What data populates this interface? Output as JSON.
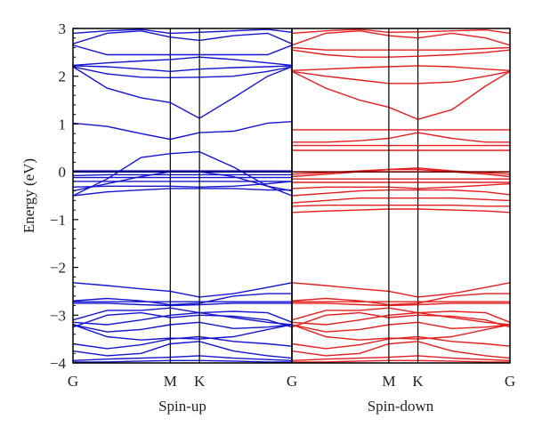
{
  "chart_data": {
    "type": "line",
    "ylabel": "Energy (eV)",
    "ylim": [
      -4,
      3
    ],
    "yticks": [
      3,
      2,
      1,
      0,
      -1,
      -2,
      -3,
      -4
    ],
    "ytick_labels": [
      "3",
      "2",
      "1",
      "0",
      "−1",
      "−2",
      "−3",
      "−4"
    ],
    "fermi_level": 0,
    "grid": false,
    "legend": "none",
    "x": [
      0,
      1,
      2,
      3,
      4
    ],
    "panels": [
      {
        "title": "Spin-up",
        "color": "#1414d2",
        "kpoint_labels": [
          "G",
          "M",
          "K",
          "G"
        ],
        "kpoint_positions": [
          0,
          2,
          2.6,
          4.5
        ],
        "x": [
          0,
          0.7,
          1.4,
          2.0,
          2.6,
          3.3,
          4.0,
          4.5
        ],
        "series": [
          {
            "values": [
              -3.98,
              -3.98,
              -3.96,
              -3.95,
              -3.95,
              -3.96,
              -3.98,
              -3.98
            ]
          },
          {
            "values": [
              -3.95,
              -3.92,
              -3.9,
              -3.88,
              -3.85,
              -3.9,
              -3.93,
              -3.95
            ]
          },
          {
            "values": [
              -3.75,
              -3.85,
              -3.8,
              -3.6,
              -3.55,
              -3.75,
              -3.85,
              -3.9
            ]
          },
          {
            "values": [
              -3.6,
              -3.7,
              -3.62,
              -3.5,
              -3.45,
              -3.55,
              -3.6,
              -3.65
            ]
          },
          {
            "values": [
              -3.2,
              -3.45,
              -3.52,
              -3.48,
              -3.5,
              -3.45,
              -3.3,
              -3.2
            ]
          },
          {
            "values": [
              -3.2,
              -3.35,
              -3.3,
              -3.2,
              -3.15,
              -3.28,
              -3.25,
              -3.2
            ]
          },
          {
            "values": [
              -3.15,
              -3.2,
              -3.1,
              -3.0,
              -2.95,
              -3.05,
              -3.15,
              -3.2
            ]
          },
          {
            "values": [
              -3.25,
              -3.0,
              -2.95,
              -3.05,
              -3.0,
              -3.02,
              -3.1,
              -3.25
            ]
          },
          {
            "values": [
              -3.1,
              -2.9,
              -2.9,
              -2.85,
              -2.95,
              -2.92,
              -2.95,
              -3.15
            ]
          },
          {
            "values": [
              -2.75,
              -2.75,
              -2.78,
              -2.8,
              -2.78,
              -2.75,
              -2.75,
              -2.75
            ]
          },
          {
            "values": [
              -2.72,
              -2.72,
              -2.72,
              -2.72,
              -2.72,
              -2.72,
              -2.72,
              -2.72
            ]
          },
          {
            "values": [
              -2.7,
              -2.65,
              -2.7,
              -2.78,
              -2.75,
              -2.6,
              -2.55,
              -2.55
            ]
          },
          {
            "values": [
              -2.32,
              -2.38,
              -2.45,
              -2.5,
              -2.62,
              -2.55,
              -2.42,
              -2.32
            ]
          },
          {
            "values": [
              -0.5,
              -0.42,
              -0.38,
              -0.35,
              -0.35,
              -0.35,
              -0.38,
              -0.38
            ]
          },
          {
            "values": [
              -0.32,
              -0.3,
              -0.3,
              -0.3,
              -0.32,
              -0.3,
              -0.25,
              -0.2
            ]
          },
          {
            "values": [
              -0.2,
              -0.2,
              -0.2,
              -0.2,
              -0.2,
              -0.2,
              -0.2,
              -0.2
            ]
          },
          {
            "values": [
              -0.12,
              -0.12,
              -0.12,
              -0.12,
              -0.12,
              -0.12,
              -0.12,
              -0.12
            ]
          },
          {
            "values": [
              -0.08,
              -0.06,
              -0.06,
              -0.06,
              -0.06,
              -0.06,
              -0.06,
              -0.06
            ]
          },
          {
            "values": [
              0.02,
              0.02,
              0.02,
              0.02,
              0.02,
              0.02,
              0.02,
              0.02
            ]
          },
          {
            "values": [
              -0.5,
              -0.15,
              0.3,
              0.38,
              0.42,
              0.1,
              -0.3,
              -0.5
            ]
          },
          {
            "values": [
              -0.4,
              -0.25,
              -0.1,
              0.0,
              0.0,
              -0.1,
              -0.3,
              -0.4
            ]
          },
          {
            "values": [
              1.02,
              0.95,
              0.8,
              0.68,
              0.82,
              0.85,
              1.02,
              1.05
            ]
          },
          {
            "values": [
              2.2,
              1.75,
              1.55,
              1.45,
              1.12,
              1.55,
              2.0,
              2.2
            ]
          },
          {
            "values": [
              2.2,
              2.05,
              1.98,
              1.97,
              1.98,
              2.0,
              2.1,
              2.2
            ]
          },
          {
            "values": [
              2.22,
              2.2,
              2.15,
              2.1,
              2.15,
              2.18,
              2.2,
              2.22
            ]
          },
          {
            "values": [
              2.23,
              2.28,
              2.32,
              2.35,
              2.4,
              2.35,
              2.28,
              2.23
            ]
          },
          {
            "values": [
              2.65,
              2.45,
              2.45,
              2.45,
              2.45,
              2.45,
              2.45,
              2.65
            ]
          },
          {
            "values": [
              2.68,
              2.9,
              2.95,
              2.82,
              2.75,
              2.85,
              2.9,
              2.68
            ]
          },
          {
            "values": [
              2.9,
              2.95,
              2.98,
              2.9,
              2.92,
              2.95,
              2.98,
              2.92
            ]
          }
        ]
      },
      {
        "title": "Spin-down",
        "color": "#e41e1e",
        "kpoint_labels": [
          "G",
          "M",
          "K",
          "G"
        ],
        "kpoint_positions": [
          0,
          2,
          2.6,
          4.5
        ],
        "x": [
          0,
          0.7,
          1.4,
          2.0,
          2.6,
          3.3,
          4.0,
          4.5
        ],
        "series": [
          {
            "values": [
              -3.98,
              -3.98,
              -3.96,
              -3.95,
              -3.95,
              -3.96,
              -3.98,
              -3.98
            ]
          },
          {
            "values": [
              -3.95,
              -3.92,
              -3.9,
              -3.88,
              -3.85,
              -3.9,
              -3.93,
              -3.95
            ]
          },
          {
            "values": [
              -3.75,
              -3.85,
              -3.8,
              -3.6,
              -3.55,
              -3.75,
              -3.85,
              -3.9
            ]
          },
          {
            "values": [
              -3.6,
              -3.7,
              -3.62,
              -3.5,
              -3.45,
              -3.55,
              -3.6,
              -3.65
            ]
          },
          {
            "values": [
              -3.2,
              -3.45,
              -3.52,
              -3.48,
              -3.5,
              -3.45,
              -3.3,
              -3.2
            ]
          },
          {
            "values": [
              -3.2,
              -3.35,
              -3.3,
              -3.2,
              -3.15,
              -3.28,
              -3.25,
              -3.2
            ]
          },
          {
            "values": [
              -3.15,
              -3.2,
              -3.1,
              -3.0,
              -2.95,
              -3.05,
              -3.15,
              -3.2
            ]
          },
          {
            "values": [
              -3.25,
              -3.0,
              -2.95,
              -3.05,
              -3.0,
              -3.02,
              -3.1,
              -3.25
            ]
          },
          {
            "values": [
              -3.1,
              -2.9,
              -2.9,
              -2.85,
              -2.95,
              -2.92,
              -2.95,
              -3.15
            ]
          },
          {
            "values": [
              -2.75,
              -2.75,
              -2.78,
              -2.8,
              -2.78,
              -2.75,
              -2.75,
              -2.75
            ]
          },
          {
            "values": [
              -2.72,
              -2.72,
              -2.72,
              -2.72,
              -2.72,
              -2.72,
              -2.72,
              -2.72
            ]
          },
          {
            "values": [
              -2.7,
              -2.65,
              -2.7,
              -2.78,
              -2.75,
              -2.6,
              -2.55,
              -2.55
            ]
          },
          {
            "values": [
              -2.32,
              -2.38,
              -2.45,
              -2.5,
              -2.62,
              -2.55,
              -2.42,
              -2.32
            ]
          },
          {
            "values": [
              -0.85,
              -0.82,
              -0.8,
              -0.78,
              -0.78,
              -0.8,
              -0.82,
              -0.85
            ]
          },
          {
            "values": [
              -0.72,
              -0.7,
              -0.7,
              -0.7,
              -0.7,
              -0.7,
              -0.72,
              -0.72
            ]
          },
          {
            "values": [
              -0.65,
              -0.6,
              -0.55,
              -0.55,
              -0.55,
              -0.55,
              -0.58,
              -0.6
            ]
          },
          {
            "values": [
              -0.5,
              -0.45,
              -0.4,
              -0.38,
              -0.38,
              -0.38,
              -0.42,
              -0.48
            ]
          },
          {
            "values": [
              -0.35,
              -0.32,
              -0.32,
              -0.32,
              -0.35,
              -0.32,
              -0.28,
              -0.25
            ]
          },
          {
            "values": [
              -0.22,
              -0.22,
              -0.22,
              -0.22,
              -0.22,
              -0.22,
              -0.22,
              -0.22
            ]
          },
          {
            "values": [
              -0.15,
              -0.15,
              -0.15,
              -0.15,
              -0.15,
              -0.15,
              -0.15,
              -0.15
            ]
          },
          {
            "values": [
              -0.1,
              -0.05,
              0.0,
              0.05,
              0.05,
              0.0,
              -0.05,
              -0.1
            ]
          },
          {
            "values": [
              -0.05,
              -0.02,
              0.02,
              0.05,
              0.08,
              0.02,
              -0.02,
              -0.05
            ]
          },
          {
            "values": [
              0.45,
              0.45,
              0.45,
              0.45,
              0.45,
              0.45,
              0.45,
              0.45
            ]
          },
          {
            "values": [
              0.55,
              0.55,
              0.55,
              0.55,
              0.55,
              0.55,
              0.55,
              0.55
            ]
          },
          {
            "values": [
              0.62,
              0.62,
              0.65,
              0.7,
              0.82,
              0.7,
              0.62,
              0.62
            ]
          },
          {
            "values": [
              0.88,
              0.88,
              0.88,
              0.88,
              0.88,
              0.88,
              0.88,
              0.88
            ]
          },
          {
            "values": [
              2.1,
              1.75,
              1.5,
              1.35,
              1.1,
              1.3,
              1.8,
              2.1
            ]
          },
          {
            "values": [
              2.1,
              2.0,
              1.92,
              1.85,
              1.85,
              1.88,
              2.0,
              2.1
            ]
          },
          {
            "values": [
              2.12,
              2.15,
              2.18,
              2.2,
              2.22,
              2.2,
              2.15,
              2.12
            ]
          },
          {
            "values": [
              2.55,
              2.45,
              2.4,
              2.4,
              2.42,
              2.45,
              2.5,
              2.55
            ]
          },
          {
            "values": [
              2.6,
              2.55,
              2.55,
              2.55,
              2.55,
              2.55,
              2.58,
              2.6
            ]
          },
          {
            "values": [
              2.65,
              2.9,
              2.95,
              2.85,
              2.8,
              2.9,
              2.8,
              2.65
            ]
          },
          {
            "values": [
              2.9,
              2.95,
              2.98,
              2.92,
              2.93,
              2.95,
              2.97,
              2.9
            ]
          }
        ]
      }
    ]
  }
}
